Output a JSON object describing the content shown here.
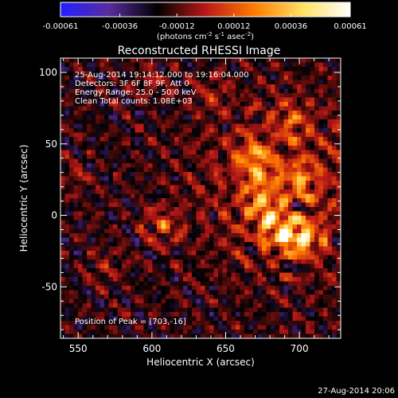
{
  "chart_data": {
    "type": "heatmap",
    "title": "Reconstructed RHESSI Image",
    "xlabel": "Heliocentric X (arcsec)",
    "ylabel": "Heliocentric Y (arcsec)",
    "xlim": [
      538,
      728
    ],
    "ylim": [
      -86,
      110
    ],
    "xticks": [
      550,
      600,
      650,
      700
    ],
    "yticks": [
      -50,
      0,
      50,
      100
    ],
    "colorbar": {
      "min": -0.00061,
      "max": 0.00061,
      "ticks": [
        "-0.00061",
        "-0.00036",
        "-0.00012",
        "0.00012",
        "0.00036",
        "0.00061"
      ],
      "tick_values": [
        -0.00061,
        -0.00036,
        -0.00012,
        0.00012,
        0.00036,
        0.00061
      ],
      "units_parts": [
        "(photons cm",
        "-2",
        " s",
        "-1",
        " asec",
        "-2",
        ")"
      ],
      "colors": [
        "#2020ff",
        "#5a2ca0",
        "#000000",
        "#b81818",
        "#ff7a00",
        "#ffe060",
        "#ffffff"
      ]
    },
    "annotations": [
      "25-Aug-2014 19:14:12.000 to 19:16:04.000",
      "Detectors: 3F 6F 8F 9F, Att 0",
      "Energy Range: 25.0 - 50.0 keV",
      "Clean     Total counts: 1.08E+03"
    ],
    "peak_label": "Position of Peak = [703,-16]",
    "peak": [
      703,
      -16
    ],
    "sources": [
      {
        "x": 703,
        "y": -16,
        "amp": 1.0
      },
      {
        "x": 690,
        "y": -14,
        "amp": 0.85
      },
      {
        "x": 680,
        "y": -5,
        "amp": 0.7
      },
      {
        "x": 675,
        "y": 12,
        "amp": 0.65
      },
      {
        "x": 672,
        "y": 33,
        "amp": 0.6
      },
      {
        "x": 700,
        "y": 25,
        "amp": 0.55
      },
      {
        "x": 695,
        "y": 66,
        "amp": 0.5
      },
      {
        "x": 668,
        "y": 45,
        "amp": 0.45
      },
      {
        "x": 607,
        "y": -7,
        "amp": 0.6
      },
      {
        "x": 568,
        "y": -38,
        "amp": 0.3
      },
      {
        "x": 550,
        "y": 28,
        "amp": 0.3
      },
      {
        "x": 640,
        "y": 85,
        "amp": 0.3
      },
      {
        "x": 600,
        "y": 95,
        "amp": 0.28
      }
    ]
  },
  "footer": {
    "timestamp": "27-Aug-2014 20:06"
  }
}
